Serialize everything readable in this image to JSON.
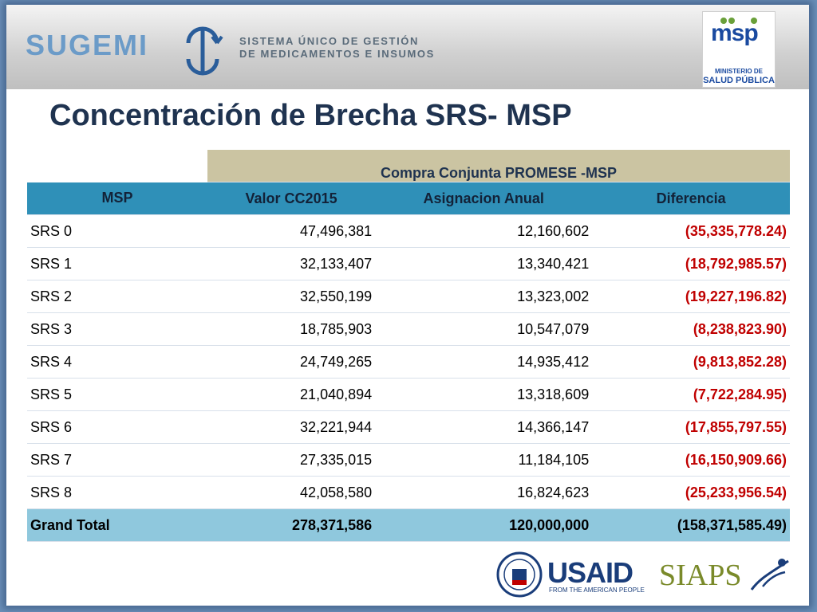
{
  "header": {
    "brand": "SUGEMI",
    "subtitle_line1": "SISTEMA ÚNICO DE GESTIÓN",
    "subtitle_line2": "DE MEDICAMENTOS E INSUMOS",
    "ministry_logo_text": "msp",
    "ministry_line1": "MINISTERIO DE",
    "ministry_line2": "SALUD PÚBLICA"
  },
  "title": "Concentración de Brecha SRS- MSP",
  "table": {
    "group_header": "Compra Conjunta PROMESE -MSP",
    "columns": [
      "MSP",
      "Valor CC2015",
      "Asignacion Anual",
      "Diferencia"
    ],
    "rows": [
      {
        "name": "SRS 0",
        "valor": "47,496,381",
        "asignacion": "12,160,602",
        "diferencia": "(35,335,778.24)"
      },
      {
        "name": "SRS 1",
        "valor": "32,133,407",
        "asignacion": "13,340,421",
        "diferencia": "(18,792,985.57)"
      },
      {
        "name": "SRS 2",
        "valor": "32,550,199",
        "asignacion": "13,323,002",
        "diferencia": "(19,227,196.82)"
      },
      {
        "name": "SRS 3",
        "valor": "18,785,903",
        "asignacion": "10,547,079",
        "diferencia": "(8,238,823.90)"
      },
      {
        "name": "SRS 4",
        "valor": "24,749,265",
        "asignacion": "14,935,412",
        "diferencia": "(9,813,852.28)"
      },
      {
        "name": "SRS 5",
        "valor": "21,040,894",
        "asignacion": "13,318,609",
        "diferencia": "(7,722,284.95)"
      },
      {
        "name": "SRS 6",
        "valor": "32,221,944",
        "asignacion": "14,366,147",
        "diferencia": "(17,855,797.55)"
      },
      {
        "name": "SRS 7",
        "valor": "27,335,015",
        "asignacion": "11,184,105",
        "diferencia": "(16,150,909.66)"
      },
      {
        "name": "SRS 8",
        "valor": "42,058,580",
        "asignacion": "16,824,623",
        "diferencia": "(25,233,956.54)"
      }
    ],
    "total": {
      "name": "Grand Total",
      "valor": "278,371,586",
      "asignacion": "120,000,000",
      "diferencia": "(158,371,585.49)"
    }
  },
  "footer": {
    "usaid": "USAID",
    "usaid_tagline": "FROM THE AMERICAN PEOPLE",
    "siaps": "SIAPS"
  },
  "colors": {
    "header_band": "#cbc4a2",
    "column_header": "#2f90b8",
    "total_row": "#8fc8dd",
    "negative": "#c00000",
    "title": "#1f3350"
  }
}
